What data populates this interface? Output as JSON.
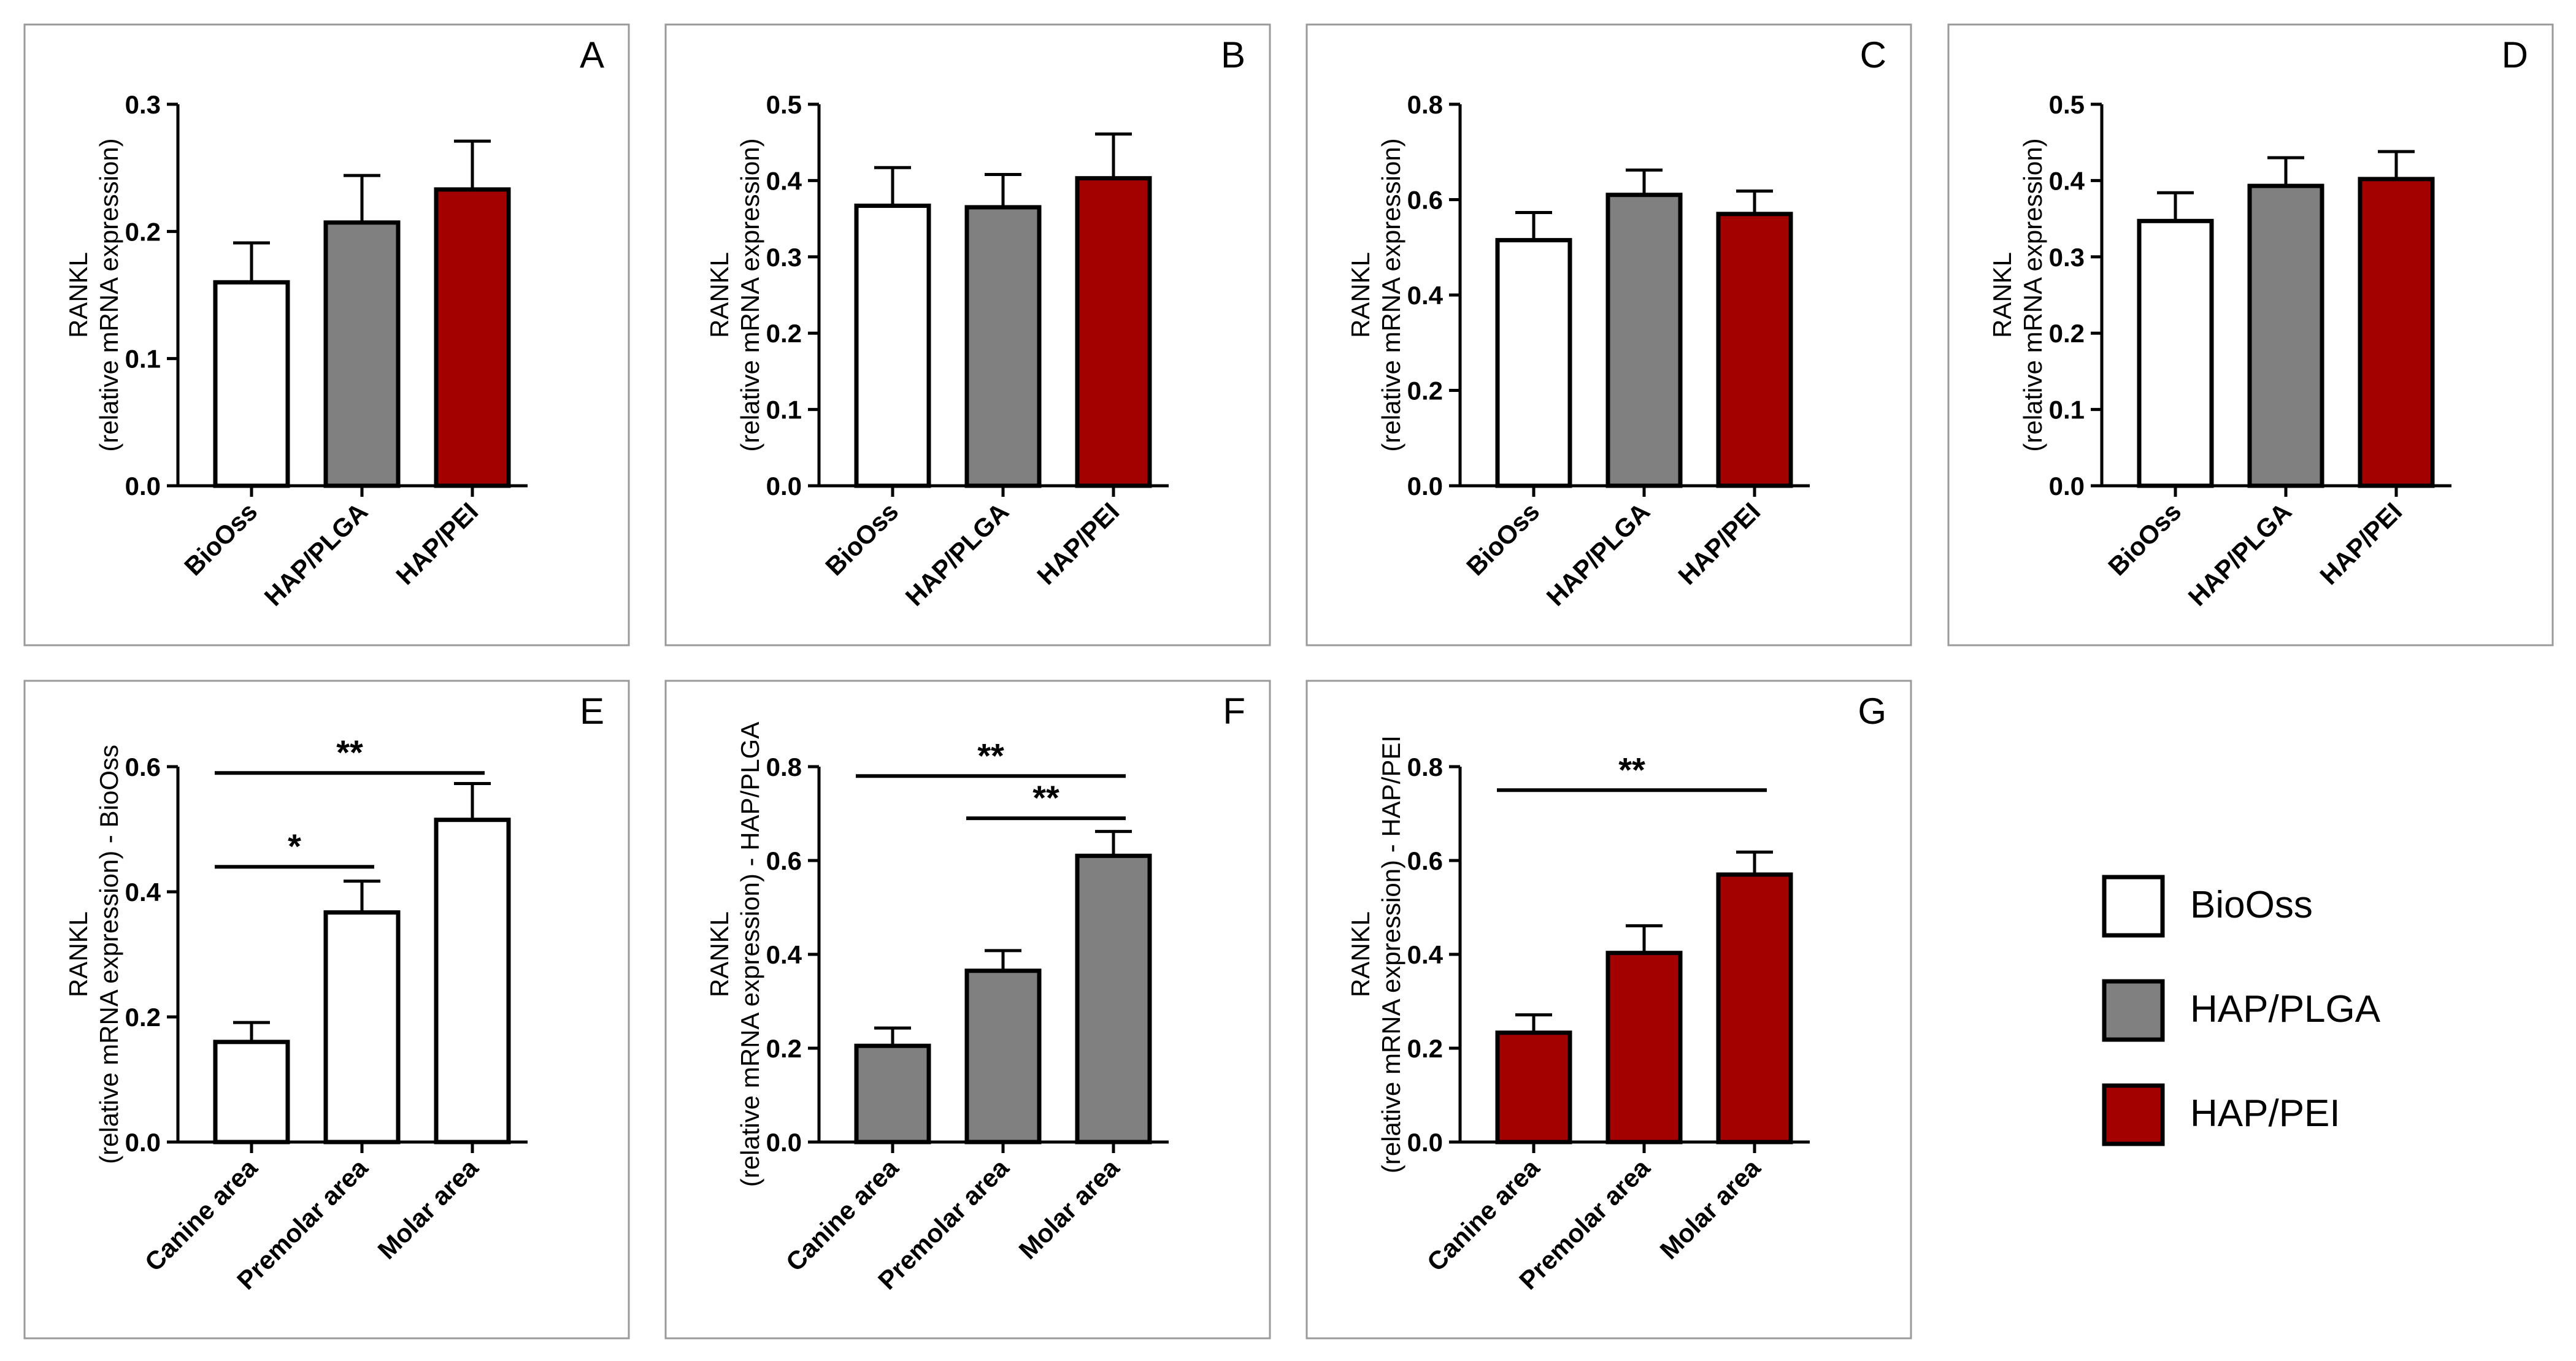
{
  "colors": {
    "BioOss": "#ffffff",
    "HAP/PLGA": "#808080",
    "HAP/PEI": "#a30000",
    "panel_border": "#9a9a9a",
    "ink": "#000000"
  },
  "legend": {
    "items": [
      {
        "label": "BioOss",
        "color": "#ffffff"
      },
      {
        "label": "HAP/PLGA",
        "color": "#808080"
      },
      {
        "label": "HAP/PEI",
        "color": "#a30000"
      }
    ]
  },
  "chart_data": [
    {
      "panel": "A",
      "type": "bar",
      "ylabel_line1": "RANKL",
      "ylabel_line2": "(relative mRNA expression)",
      "ylim": [
        0,
        0.3
      ],
      "yticks": [
        "0.0",
        "0.1",
        "0.2",
        "0.3"
      ],
      "categories": [
        "BioOss",
        "HAP/PLGA",
        "HAP/PEI"
      ],
      "values": [
        0.16,
        0.207,
        0.233
      ],
      "errors": [
        0.031,
        0.037,
        0.038
      ],
      "colors": [
        "#ffffff",
        "#808080",
        "#a30000"
      ],
      "significance": []
    },
    {
      "panel": "B",
      "type": "bar",
      "ylabel_line1": "RANKL",
      "ylabel_line2": "(relative mRNA expression)",
      "ylim": [
        0,
        0.5
      ],
      "yticks": [
        "0.0",
        "0.1",
        "0.2",
        "0.3",
        "0.4",
        "0.5"
      ],
      "categories": [
        "BioOss",
        "HAP/PLGA",
        "HAP/PEI"
      ],
      "values": [
        0.367,
        0.365,
        0.403
      ],
      "errors": [
        0.05,
        0.043,
        0.058
      ],
      "colors": [
        "#ffffff",
        "#808080",
        "#a30000"
      ],
      "significance": []
    },
    {
      "panel": "C",
      "type": "bar",
      "ylabel_line1": "RANKL",
      "ylabel_line2": "(relative mRNA expression)",
      "ylim": [
        0,
        0.8
      ],
      "yticks": [
        "0.0",
        "0.2",
        "0.4",
        "0.6",
        "0.8"
      ],
      "categories": [
        "BioOss",
        "HAP/PLGA",
        "HAP/PEI"
      ],
      "values": [
        0.515,
        0.61,
        0.57
      ],
      "errors": [
        0.058,
        0.052,
        0.048
      ],
      "colors": [
        "#ffffff",
        "#808080",
        "#a30000"
      ],
      "significance": []
    },
    {
      "panel": "D",
      "type": "bar",
      "ylabel_line1": "RANKL",
      "ylabel_line2": "(relative mRNA expression)",
      "ylim": [
        0,
        0.5
      ],
      "yticks": [
        "0.0",
        "0.1",
        "0.2",
        "0.3",
        "0.4",
        "0.5"
      ],
      "categories": [
        "BioOss",
        "HAP/PLGA",
        "HAP/PEI"
      ],
      "values": [
        0.347,
        0.393,
        0.402
      ],
      "errors": [
        0.037,
        0.037,
        0.036
      ],
      "colors": [
        "#ffffff",
        "#808080",
        "#a30000"
      ],
      "significance": []
    },
    {
      "panel": "E",
      "type": "bar",
      "ylabel_line1": "RANKL",
      "ylabel_line2": "(relative mRNA expression) - BioOss",
      "ylim": [
        0,
        0.6
      ],
      "yticks": [
        "0.0",
        "0.2",
        "0.4",
        "0.6"
      ],
      "categories": [
        "Canine area",
        "Premolar area",
        "Molar area"
      ],
      "values": [
        0.16,
        0.367,
        0.515
      ],
      "errors": [
        0.031,
        0.05,
        0.058
      ],
      "colors": [
        "#ffffff",
        "#ffffff",
        "#ffffff"
      ],
      "significance": [
        {
          "from": 0,
          "to": 1,
          "label": "*",
          "y": 0.44
        },
        {
          "from": 0,
          "to": 2,
          "label": "**",
          "y": 0.59
        }
      ]
    },
    {
      "panel": "F",
      "type": "bar",
      "ylabel_line1": "RANKL",
      "ylabel_line2": "(relative mRNA expression) - HAP/PLGA",
      "ylim": [
        0,
        0.8
      ],
      "yticks": [
        "0.0",
        "0.2",
        "0.4",
        "0.6",
        "0.8"
      ],
      "categories": [
        "Canine area",
        "Premolar area",
        "Molar area"
      ],
      "values": [
        0.205,
        0.365,
        0.61
      ],
      "errors": [
        0.038,
        0.043,
        0.052
      ],
      "colors": [
        "#808080",
        "#808080",
        "#808080"
      ],
      "significance": [
        {
          "from": 1,
          "to": 2,
          "label": "**",
          "y": 0.69
        },
        {
          "from": 0,
          "to": 2,
          "label": "**",
          "y": 0.78
        }
      ]
    },
    {
      "panel": "G",
      "type": "bar",
      "ylabel_line1": "RANKL",
      "ylabel_line2": "(relative mRNA expression) - HAP/PEI",
      "ylim": [
        0,
        0.8
      ],
      "yticks": [
        "0.0",
        "0.2",
        "0.4",
        "0.6",
        "0.8"
      ],
      "categories": [
        "Canine area",
        "Premolar area",
        "Molar area"
      ],
      "values": [
        0.233,
        0.403,
        0.57
      ],
      "errors": [
        0.038,
        0.058,
        0.048
      ],
      "colors": [
        "#a30000",
        "#a30000",
        "#a30000"
      ],
      "significance": [
        {
          "from": 0,
          "to": 2,
          "label": "**",
          "y": 0.75
        }
      ]
    }
  ]
}
